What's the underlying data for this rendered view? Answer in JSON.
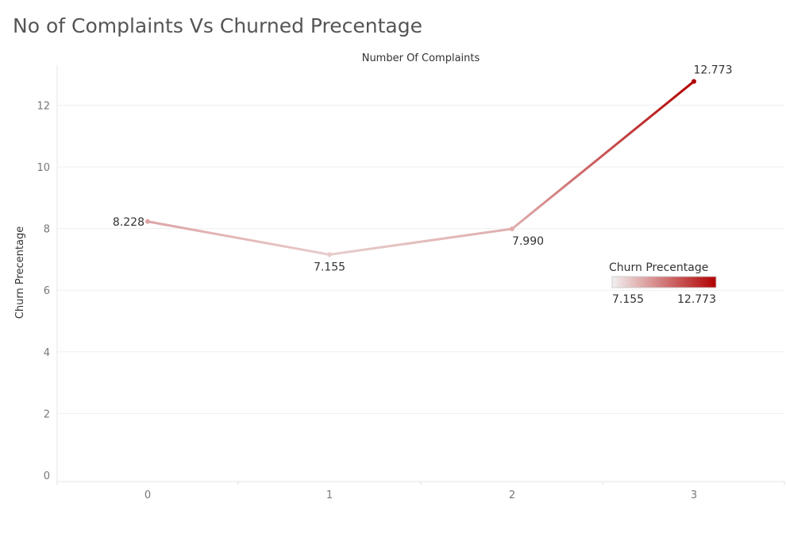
{
  "chart_data": {
    "type": "line",
    "title": "No of Complaints Vs Churned Precentage",
    "xlabel": "Number Of Complaints",
    "ylabel": "Churn Precentage",
    "x": [
      "0",
      "1",
      "2",
      "3"
    ],
    "series": [
      {
        "values": [
          8.228,
          7.155,
          7.99,
          12.773
        ],
        "labels": [
          "8.228",
          "7.155",
          "7.990",
          "12.773"
        ]
      }
    ],
    "yticks": [
      "0",
      "2",
      "4",
      "6",
      "8",
      "10",
      "12"
    ],
    "ylim": [
      0,
      13.3
    ],
    "grid": true,
    "legend": {
      "title": "Churn Precentage",
      "min_label": "7.155",
      "max_label": "12.773",
      "min_color": "#f2f0f0",
      "max_color": "#b10000",
      "placement": "right"
    }
  }
}
